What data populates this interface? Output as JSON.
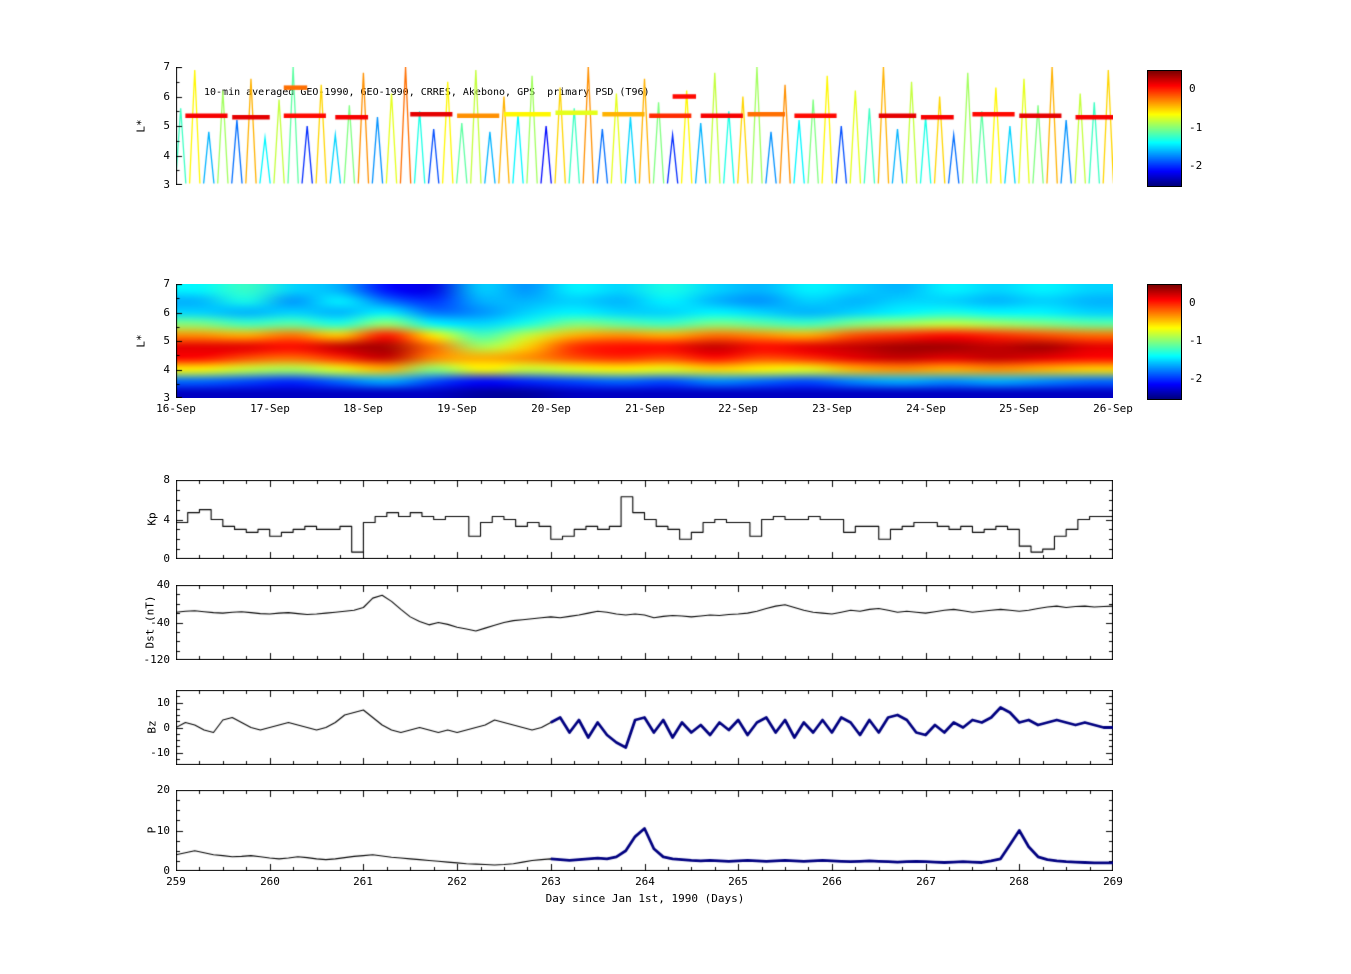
{
  "figure": {
    "annotation": "10-min averaged GEO-1990, GEO-1990, CRRES, Akebono, GPS  primary PSD (T96)",
    "xlabel": "Day since Jan 1st, 1990 (Days)",
    "background": "#ffffff"
  },
  "colormap": {
    "vmin": -2.5,
    "vmax": 0.5,
    "ticks": [
      0,
      -1,
      -2
    ]
  },
  "chart_data": [
    {
      "id": "psd_scatter",
      "type": "scatter",
      "ylabel": "L*",
      "ylim": [
        3,
        7
      ],
      "yticks": [
        3,
        4,
        5,
        6,
        7
      ],
      "xlim": [
        259,
        269
      ],
      "spikes": [
        [
          259.05,
          5.6,
          -1.2
        ],
        [
          259.2,
          6.9,
          -0.6
        ],
        [
          259.35,
          4.8,
          -1.6
        ],
        [
          259.5,
          6.2,
          -0.9
        ],
        [
          259.65,
          5.2,
          -1.8
        ],
        [
          259.8,
          6.6,
          -0.4
        ],
        [
          259.95,
          4.6,
          -1.4
        ],
        [
          260.1,
          5.9,
          -0.8
        ],
        [
          260.25,
          7.0,
          -1.1
        ],
        [
          260.4,
          5.0,
          -2.0
        ],
        [
          260.55,
          6.4,
          -0.5
        ],
        [
          260.7,
          4.7,
          -1.5
        ],
        [
          260.85,
          5.7,
          -1.0
        ],
        [
          261.0,
          6.8,
          -0.3
        ],
        [
          261.15,
          5.3,
          -1.7
        ],
        [
          261.3,
          6.1,
          -0.7
        ],
        [
          261.45,
          7.0,
          -0.2
        ],
        [
          261.6,
          5.5,
          -1.3
        ],
        [
          261.75,
          4.9,
          -1.9
        ],
        [
          261.9,
          6.5,
          -0.6
        ],
        [
          262.05,
          5.1,
          -1.1
        ],
        [
          262.2,
          6.9,
          -0.8
        ],
        [
          262.35,
          4.8,
          -1.6
        ],
        [
          262.5,
          6.0,
          -0.4
        ],
        [
          262.65,
          5.4,
          -1.4
        ],
        [
          262.8,
          6.7,
          -0.9
        ],
        [
          262.95,
          5.0,
          -2.1
        ],
        [
          263.1,
          6.3,
          -0.5
        ],
        [
          263.25,
          5.6,
          -1.2
        ],
        [
          263.4,
          7.0,
          -0.3
        ],
        [
          263.55,
          4.9,
          -1.8
        ],
        [
          263.7,
          6.1,
          -0.7
        ],
        [
          263.85,
          5.3,
          -1.5
        ],
        [
          264.0,
          6.6,
          -0.4
        ],
        [
          264.15,
          5.8,
          -1.0
        ],
        [
          264.3,
          4.7,
          -2.0
        ],
        [
          264.45,
          6.2,
          -0.6
        ],
        [
          264.6,
          5.1,
          -1.6
        ],
        [
          264.75,
          6.8,
          -0.8
        ],
        [
          264.9,
          5.5,
          -1.3
        ],
        [
          265.05,
          6.0,
          -0.5
        ],
        [
          265.2,
          7.0,
          -0.9
        ],
        [
          265.35,
          4.8,
          -1.7
        ],
        [
          265.5,
          6.4,
          -0.3
        ],
        [
          265.65,
          5.2,
          -1.4
        ],
        [
          265.8,
          5.9,
          -1.0
        ],
        [
          265.95,
          6.7,
          -0.6
        ],
        [
          266.1,
          5.0,
          -1.9
        ],
        [
          266.25,
          6.2,
          -0.7
        ],
        [
          266.4,
          5.6,
          -1.2
        ],
        [
          266.55,
          7.0,
          -0.4
        ],
        [
          266.7,
          4.9,
          -1.6
        ],
        [
          266.85,
          6.5,
          -0.8
        ],
        [
          267.0,
          5.3,
          -1.3
        ],
        [
          267.15,
          6.0,
          -0.5
        ],
        [
          267.3,
          4.7,
          -1.8
        ],
        [
          267.45,
          6.8,
          -0.9
        ],
        [
          267.6,
          5.5,
          -1.1
        ],
        [
          267.75,
          6.3,
          -0.6
        ],
        [
          267.9,
          5.0,
          -1.5
        ],
        [
          268.05,
          6.6,
          -0.7
        ],
        [
          268.2,
          5.7,
          -1.0
        ],
        [
          268.35,
          7.0,
          -0.4
        ],
        [
          268.5,
          5.2,
          -1.7
        ],
        [
          268.65,
          6.1,
          -0.8
        ],
        [
          268.8,
          5.8,
          -1.2
        ],
        [
          268.95,
          6.9,
          -0.5
        ]
      ],
      "bands": [
        [
          259.1,
          259.55,
          5.35,
          0.15
        ],
        [
          259.6,
          260.0,
          5.3,
          0.2
        ],
        [
          260.15,
          260.6,
          5.35,
          0.1
        ],
        [
          260.7,
          261.05,
          5.3,
          0.15
        ],
        [
          260.15,
          260.4,
          6.3,
          -0.2
        ],
        [
          261.5,
          261.95,
          5.4,
          0.2
        ],
        [
          262.0,
          262.45,
          5.35,
          -0.3
        ],
        [
          262.5,
          263.0,
          5.4,
          -0.6
        ],
        [
          263.05,
          263.5,
          5.45,
          -0.7
        ],
        [
          263.55,
          264.0,
          5.4,
          -0.4
        ],
        [
          264.05,
          264.5,
          5.35,
          0.0
        ],
        [
          264.3,
          264.55,
          6.0,
          0.1
        ],
        [
          264.6,
          265.05,
          5.35,
          0.15
        ],
        [
          265.1,
          265.5,
          5.4,
          -0.2
        ],
        [
          265.6,
          266.05,
          5.35,
          0.1
        ],
        [
          266.5,
          266.9,
          5.35,
          0.2
        ],
        [
          266.95,
          267.3,
          5.3,
          0.15
        ],
        [
          267.5,
          267.95,
          5.4,
          0.1
        ],
        [
          268.0,
          268.45,
          5.35,
          0.2
        ],
        [
          268.6,
          269.0,
          5.3,
          0.15
        ]
      ]
    },
    {
      "id": "psd_map",
      "type": "heatmap",
      "ylabel": "L*",
      "ylim": [
        3,
        7
      ],
      "yticks": [
        3,
        4,
        5,
        6,
        7
      ],
      "xlim": [
        259,
        269
      ],
      "x_tick_labels": [
        "16-Sep",
        "17-Sep",
        "18-Sep",
        "19-Sep",
        "20-Sep",
        "21-Sep",
        "22-Sep",
        "23-Sep",
        "24-Sep",
        "25-Sep",
        "26-Sep"
      ],
      "l_bins": [
        3.2,
        3.6,
        4.0,
        4.4,
        4.8,
        5.2,
        5.6,
        6.0,
        6.4,
        6.8
      ],
      "values": [
        [
          -2.3,
          -1.8,
          -0.6,
          0.1,
          0.2,
          -0.3,
          -1.0,
          -1.5,
          -1.6,
          -1.4
        ],
        [
          -2.3,
          -1.9,
          -0.8,
          -0.1,
          0.2,
          -0.4,
          -1.2,
          -1.6,
          -1.3,
          -1.2
        ],
        [
          -2.3,
          -2.0,
          -0.9,
          -0.2,
          0.1,
          -0.2,
          -1.1,
          -1.5,
          -1.7,
          -1.5
        ],
        [
          -2.3,
          -1.8,
          -0.7,
          0.0,
          0.3,
          -0.5,
          -1.3,
          -1.6,
          -1.4,
          -1.6
        ],
        [
          -2.3,
          -1.6,
          -0.4,
          0.3,
          0.4,
          0.1,
          -0.9,
          -1.4,
          -1.8,
          -2.1
        ],
        [
          -2.3,
          -1.9,
          -1.0,
          -0.3,
          -0.2,
          -0.6,
          -1.4,
          -1.8,
          -2.0,
          -2.2
        ],
        [
          -2.4,
          -2.1,
          -0.6,
          -0.4,
          -0.9,
          -1.2,
          -1.5,
          -1.7,
          -1.6,
          -1.5
        ],
        [
          -2.4,
          -2.0,
          -0.8,
          -0.3,
          -0.5,
          -0.8,
          -1.3,
          -1.5,
          -1.6,
          -1.7
        ],
        [
          -2.3,
          -1.9,
          -0.7,
          -0.1,
          0.0,
          -0.4,
          -1.0,
          -1.4,
          -1.5,
          -1.4
        ],
        [
          -2.3,
          -1.8,
          -0.6,
          0.0,
          0.1,
          -0.3,
          -1.1,
          -1.5,
          -1.6,
          -1.5
        ],
        [
          -2.3,
          -1.9,
          -0.7,
          -0.1,
          0.1,
          -0.4,
          -1.2,
          -1.5,
          -1.4,
          -1.3
        ],
        [
          -2.3,
          -1.7,
          -0.5,
          0.1,
          0.3,
          -0.2,
          -1.0,
          -1.4,
          -1.6,
          -1.5
        ],
        [
          -2.3,
          -1.8,
          -0.6,
          -0.1,
          0.1,
          -0.3,
          -1.1,
          -1.5,
          -1.7,
          -1.6
        ],
        [
          -2.3,
          -1.9,
          -0.7,
          0.0,
          0.2,
          -0.4,
          -1.2,
          -1.6,
          -1.5,
          -1.4
        ],
        [
          -2.3,
          -1.7,
          -0.4,
          0.2,
          0.3,
          -0.1,
          -1.0,
          -1.5,
          -1.6,
          -1.5
        ],
        [
          -2.3,
          -1.6,
          -0.3,
          0.3,
          0.4,
          0.0,
          -0.9,
          -1.4,
          -1.5,
          -1.6
        ],
        [
          -2.3,
          -1.7,
          -0.4,
          0.2,
          0.4,
          0.1,
          -0.8,
          -1.3,
          -1.5,
          -1.4
        ],
        [
          -2.3,
          -1.6,
          -0.3,
          0.3,
          0.3,
          0.0,
          -0.9,
          -1.4,
          -1.6,
          -1.5
        ],
        [
          -2.3,
          -1.7,
          -0.4,
          0.2,
          0.4,
          -0.1,
          -1.0,
          -1.4,
          -1.5,
          -1.4
        ],
        [
          -2.3,
          -1.8,
          -0.5,
          0.1,
          0.2,
          -0.2,
          -1.1,
          -1.5,
          -1.6,
          -1.5
        ]
      ]
    },
    {
      "id": "kp",
      "type": "line",
      "step": true,
      "ylabel": "Kp",
      "ylim": [
        0,
        8
      ],
      "yticks": [
        0,
        4,
        8
      ],
      "xlim": [
        259,
        269
      ],
      "x_start": 259,
      "dt": 0.125,
      "values": [
        3.7,
        4.7,
        5.0,
        4.0,
        3.3,
        3.0,
        2.7,
        3.0,
        2.3,
        2.7,
        3.0,
        3.3,
        3.0,
        3.0,
        3.3,
        0.7,
        3.7,
        4.3,
        4.7,
        4.3,
        4.7,
        4.3,
        4.0,
        4.3,
        4.3,
        2.3,
        3.7,
        4.3,
        4.0,
        3.3,
        3.7,
        3.3,
        2.0,
        2.3,
        3.0,
        3.3,
        3.0,
        3.3,
        6.3,
        4.7,
        4.0,
        3.3,
        3.0,
        2.0,
        2.7,
        3.7,
        4.0,
        3.7,
        3.7,
        2.3,
        4.0,
        4.3,
        4.0,
        4.0,
        4.3,
        4.0,
        4.0,
        2.7,
        3.3,
        3.3,
        2.0,
        3.0,
        3.3,
        3.7,
        3.7,
        3.3,
        3.0,
        3.3,
        2.7,
        3.0,
        3.3,
        3.0,
        1.3,
        0.7,
        1.0,
        2.3,
        3.0,
        4.0,
        4.3,
        4.3
      ]
    },
    {
      "id": "dst",
      "type": "line",
      "ylabel": "Dst (nT)",
      "ylim": [
        -120,
        40
      ],
      "yticks": [
        40,
        -40,
        -120
      ],
      "xlim": [
        259,
        269
      ],
      "x_start": 259,
      "dt": 0.1,
      "values": [
        -18,
        -16,
        -15,
        -17,
        -19,
        -20,
        -18,
        -17,
        -19,
        -21,
        -22,
        -20,
        -19,
        -21,
        -23,
        -22,
        -20,
        -18,
        -16,
        -14,
        -8,
        12,
        18,
        5,
        -12,
        -28,
        -38,
        -45,
        -40,
        -44,
        -50,
        -54,
        -58,
        -52,
        -46,
        -40,
        -36,
        -34,
        -32,
        -30,
        -28,
        -30,
        -27,
        -24,
        -20,
        -16,
        -18,
        -22,
        -24,
        -22,
        -24,
        -30,
        -27,
        -25,
        -26,
        -28,
        -26,
        -24,
        -25,
        -23,
        -22,
        -20,
        -16,
        -10,
        -5,
        -2,
        -8,
        -14,
        -18,
        -20,
        -22,
        -18,
        -14,
        -16,
        -12,
        -10,
        -14,
        -18,
        -16,
        -18,
        -20,
        -17,
        -14,
        -12,
        -15,
        -18,
        -16,
        -14,
        -12,
        -14,
        -16,
        -14,
        -10,
        -7,
        -5,
        -8,
        -6,
        -5,
        -7,
        -6,
        -5
      ]
    },
    {
      "id": "bz",
      "type": "line",
      "ylabel": "Bz",
      "ylim": [
        -15,
        15
      ],
      "yticks": [
        10,
        0,
        -10
      ],
      "xlim": [
        259,
        269
      ],
      "x_start": 259,
      "dt": 0.1,
      "bold_from": 263,
      "values": [
        0,
        2,
        1,
        -1,
        -2,
        3,
        4,
        2,
        0,
        -1,
        0,
        1,
        2,
        1,
        0,
        -1,
        0,
        2,
        5,
        6,
        7,
        4,
        1,
        -1,
        -2,
        -1,
        0,
        -1,
        -2,
        -1,
        -2,
        -1,
        0,
        1,
        3,
        2,
        1,
        0,
        -1,
        0,
        2,
        4,
        -2,
        3,
        -4,
        2,
        -3,
        -6,
        -8,
        3,
        4,
        -2,
        3,
        -4,
        2,
        -2,
        1,
        -3,
        2,
        -1,
        3,
        -3,
        2,
        4,
        -2,
        3,
        -4,
        2,
        -2,
        3,
        -2,
        4,
        2,
        -3,
        3,
        -2,
        4,
        5,
        3,
        -2,
        -3,
        1,
        -2,
        2,
        0,
        3,
        2,
        4,
        8,
        6,
        2,
        3,
        1,
        2,
        3,
        2,
        1,
        2,
        1,
        0,
        0
      ]
    },
    {
      "id": "p",
      "type": "line",
      "ylabel": "P",
      "ylim": [
        0,
        20
      ],
      "yticks": [
        20,
        10,
        0
      ],
      "xlim": [
        259,
        269
      ],
      "x_start": 259,
      "dt": 0.1,
      "bold_from": 263,
      "x_tick_labels": [
        "259",
        "260",
        "261",
        "262",
        "263",
        "264",
        "265",
        "266",
        "267",
        "268",
        "269"
      ],
      "values": [
        4.0,
        4.5,
        5.0,
        4.5,
        4.0,
        3.8,
        3.5,
        3.6,
        3.8,
        3.5,
        3.2,
        3.0,
        3.2,
        3.5,
        3.3,
        3.0,
        2.8,
        3.0,
        3.3,
        3.6,
        3.8,
        4.0,
        3.7,
        3.4,
        3.2,
        3.0,
        2.8,
        2.6,
        2.4,
        2.2,
        2.0,
        1.8,
        1.7,
        1.6,
        1.5,
        1.6,
        1.8,
        2.2,
        2.6,
        2.8,
        3.0,
        2.8,
        2.6,
        2.8,
        3.0,
        3.2,
        3.0,
        3.5,
        5.0,
        8.5,
        10.5,
        5.5,
        3.5,
        3.0,
        2.8,
        2.6,
        2.5,
        2.6,
        2.5,
        2.4,
        2.5,
        2.6,
        2.5,
        2.4,
        2.5,
        2.6,
        2.5,
        2.4,
        2.5,
        2.6,
        2.5,
        2.4,
        2.3,
        2.4,
        2.5,
        2.4,
        2.3,
        2.2,
        2.3,
        2.4,
        2.3,
        2.2,
        2.1,
        2.2,
        2.3,
        2.2,
        2.1,
        2.5,
        3.0,
        6.5,
        10.0,
        6.0,
        3.5,
        2.8,
        2.5,
        2.3,
        2.2,
        2.1,
        2.0,
        2.0,
        2.0
      ]
    }
  ]
}
